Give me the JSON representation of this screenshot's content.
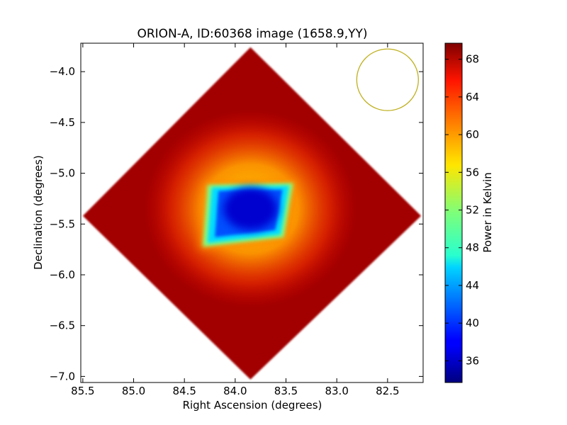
{
  "chart_data": {
    "type": "heatmap",
    "title": "ORION-A, ID:60368 image (1658.9,YY)",
    "xlabel": "Right Ascension (degrees)",
    "ylabel": "Declination (degrees)",
    "xlim": [
      85.52,
      82.15
    ],
    "ylim": [
      -7.06,
      -3.72
    ],
    "xticks": [
      85.5,
      85.0,
      84.5,
      84.0,
      83.5,
      83.0,
      82.5
    ],
    "xtick_labels": [
      "85.5",
      "85.0",
      "84.5",
      "84.0",
      "83.5",
      "83.0",
      "82.5"
    ],
    "yticks": [
      -4.0,
      -4.5,
      -5.0,
      -5.5,
      -6.0,
      -6.5,
      -7.0
    ],
    "ytick_labels": [
      "−4.0",
      "−4.5",
      "−5.0",
      "−5.5",
      "−6.0",
      "−6.5",
      "−7.0"
    ],
    "colorbar": {
      "label": "Power in Kelvin",
      "range": [
        33.7,
        69.7
      ],
      "ticks": [
        36,
        40,
        44,
        48,
        52,
        56,
        60,
        64,
        68
      ],
      "tick_labels": [
        "36",
        "40",
        "44",
        "48",
        "52",
        "56",
        "60",
        "64",
        "68"
      ],
      "colormap": "jet"
    },
    "map": {
      "footprint": {
        "shape": "rotated square (diamond)",
        "corners": [
          [
            83.85,
            -3.76
          ],
          [
            85.5,
            -5.42
          ],
          [
            83.85,
            -7.03
          ],
          [
            82.17,
            -5.42
          ]
        ],
        "background_value": 68.5
      },
      "central_depression": {
        "min_value": 36.5,
        "vertices": [
          [
            84.3,
            -5.1
          ],
          [
            83.4,
            -5.08
          ],
          [
            83.5,
            -5.65
          ],
          [
            84.35,
            -5.75
          ]
        ],
        "center": [
          83.85,
          -5.35
        ],
        "edge_value": 52,
        "halo_value": 60.5
      }
    },
    "beam_circle": {
      "center": [
        82.5,
        -4.08
      ],
      "color": "#bfb01f"
    },
    "grid": false,
    "legend": "none"
  }
}
